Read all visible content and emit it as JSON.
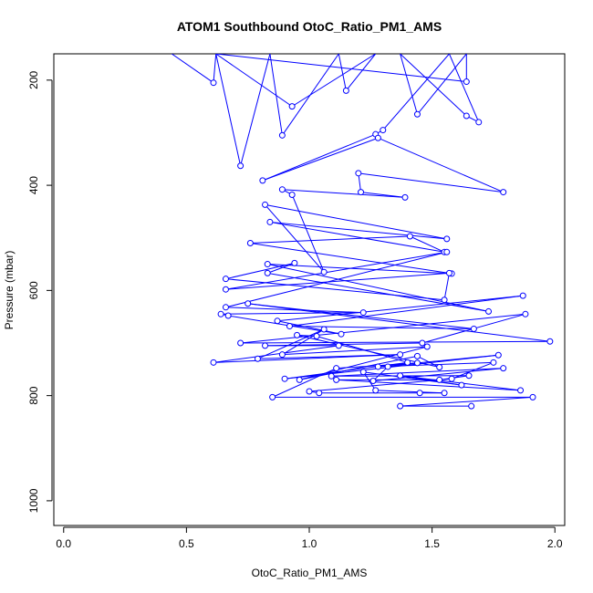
{
  "chart_data": {
    "type": "line",
    "title": "ATOM1 Southbound OtoC_Ratio_PM1_AMS",
    "xlabel": "OtoC_Ratio_PM1_AMS",
    "ylabel": "Pressure (mbar)",
    "xlim": [
      -0.04,
      2.04
    ],
    "ylim": [
      1047,
      150
    ],
    "y_axis_reversed": true,
    "x_ticks": [
      0.0,
      0.5,
      1.0,
      1.5,
      2.0
    ],
    "x_tick_labels": [
      "0.0",
      "0.5",
      "1.0",
      "1.5",
      "2.0"
    ],
    "y_ticks": [
      200,
      400,
      600,
      800,
      1000
    ],
    "y_tick_labels": [
      "200",
      "400",
      "600",
      "800",
      "1000"
    ],
    "grid": false,
    "legend": "none",
    "marker": "open-circle",
    "series": [
      {
        "color": "#0000ff",
        "points": [
          [
            0.44,
            150
          ],
          [
            0.61,
            205
          ],
          [
            0.62,
            150
          ],
          [
            0.93,
            250
          ],
          [
            1.27,
            150
          ],
          [
            1.15,
            220
          ],
          [
            1.12,
            150
          ],
          [
            0.89,
            305
          ],
          [
            0.84,
            150
          ],
          [
            0.72,
            363
          ],
          [
            0.62,
            150
          ],
          [
            1.64,
            203
          ],
          [
            1.64,
            150
          ],
          [
            1.44,
            265
          ],
          [
            1.37,
            150
          ],
          [
            1.64,
            268
          ],
          [
            1.69,
            280
          ],
          [
            1.57,
            150
          ],
          [
            1.3,
            295
          ],
          [
            1.27,
            303
          ],
          [
            0.81,
            391
          ],
          [
            1.28,
            310
          ],
          [
            1.79,
            413
          ],
          [
            1.2,
            377
          ],
          [
            1.21,
            413
          ],
          [
            1.39,
            423
          ],
          [
            0.89,
            408
          ],
          [
            0.93,
            418
          ],
          [
            1.06,
            565
          ],
          [
            0.82,
            437
          ],
          [
            1.56,
            502
          ],
          [
            0.84,
            470
          ],
          [
            1.55,
            527
          ],
          [
            1.41,
            497
          ],
          [
            0.76,
            510
          ],
          [
            1.58,
            568
          ],
          [
            0.83,
            550
          ],
          [
            1.73,
            640
          ],
          [
            0.83,
            567
          ],
          [
            0.94,
            548
          ],
          [
            0.66,
            578
          ],
          [
            1.55,
            618
          ],
          [
            1.57,
            567
          ],
          [
            0.66,
            598
          ],
          [
            1.56,
            527
          ],
          [
            0.66,
            632
          ],
          [
            1.22,
            642
          ],
          [
            0.64,
            645
          ],
          [
            0.67,
            648
          ],
          [
            1.13,
            683
          ],
          [
            0.87,
            658
          ],
          [
            1.87,
            610
          ],
          [
            0.92,
            668
          ],
          [
            1.67,
            673
          ],
          [
            0.75,
            625
          ],
          [
            1.98,
            697
          ],
          [
            0.72,
            700
          ],
          [
            1.88,
            645
          ],
          [
            1.46,
            700
          ],
          [
            0.82,
            705
          ],
          [
            1.12,
            705
          ],
          [
            0.61,
            737
          ],
          [
            1.37,
            722
          ],
          [
            0.79,
            730
          ],
          [
            1.06,
            674
          ],
          [
            0.89,
            722
          ],
          [
            1.48,
            707
          ],
          [
            0.96,
            770
          ],
          [
            1.44,
            725
          ],
          [
            1.53,
            746
          ],
          [
            0.95,
            685
          ],
          [
            1.03,
            687
          ],
          [
            1.4,
            737
          ],
          [
            0.9,
            768
          ],
          [
            1.77,
            723
          ],
          [
            1.28,
            745
          ],
          [
            1.75,
            737
          ],
          [
            1.58,
            768
          ],
          [
            1.0,
            792
          ],
          [
            1.04,
            795
          ],
          [
            1.45,
            795
          ],
          [
            1.55,
            795
          ],
          [
            1.27,
            790
          ],
          [
            1.22,
            755
          ],
          [
            1.62,
            780
          ],
          [
            1.37,
            762
          ],
          [
            1.86,
            790
          ],
          [
            1.11,
            770
          ],
          [
            1.53,
            770
          ],
          [
            1.65,
            762
          ],
          [
            1.09,
            763
          ],
          [
            1.79,
            748
          ],
          [
            1.26,
            772
          ],
          [
            1.32,
            745
          ],
          [
            1.44,
            738
          ],
          [
            1.11,
            748
          ],
          [
            0.85,
            803
          ],
          [
            1.91,
            803
          ],
          [
            1.37,
            820
          ],
          [
            1.66,
            820
          ]
        ]
      }
    ]
  }
}
